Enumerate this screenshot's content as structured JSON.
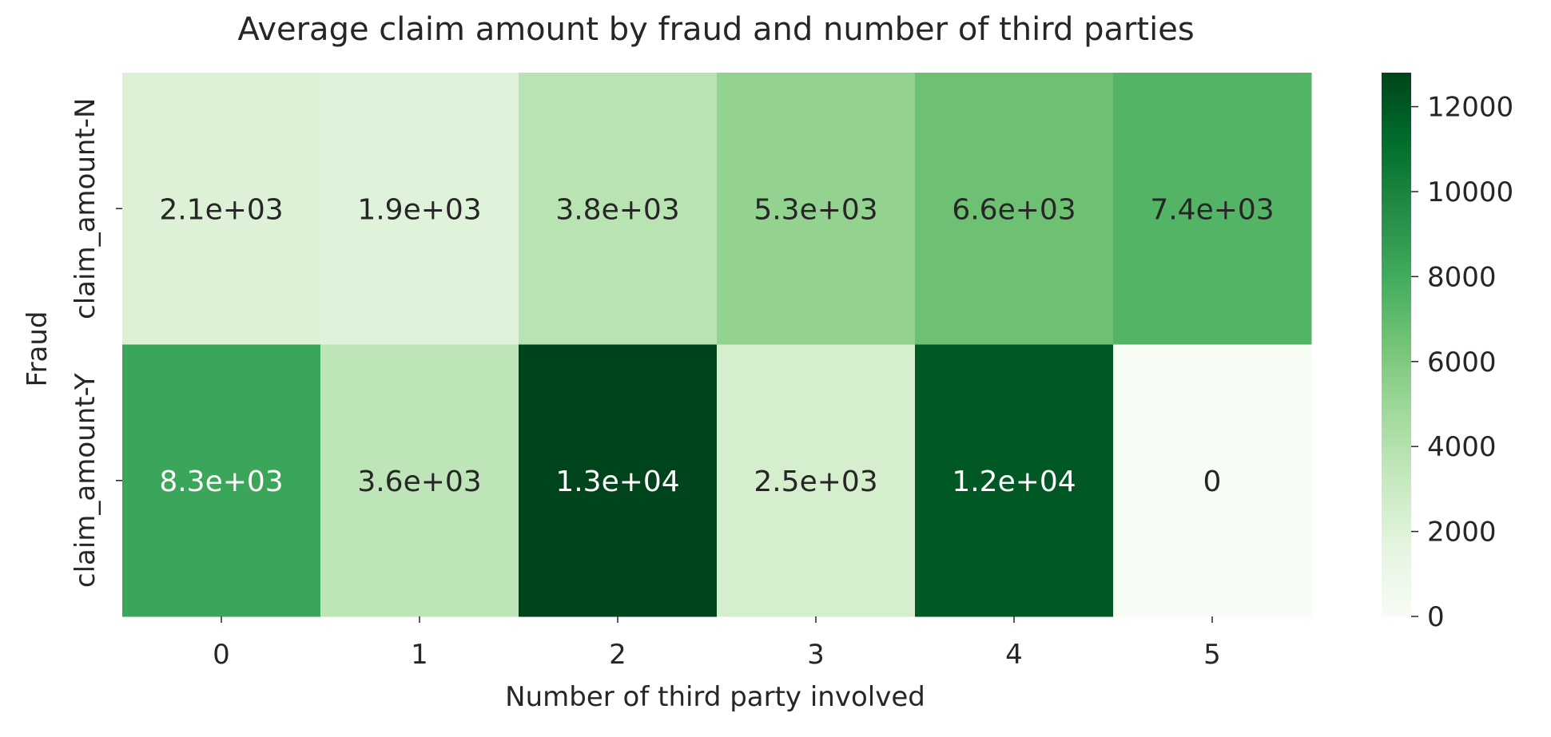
{
  "chart_data": {
    "type": "heatmap",
    "title": "Average claim amount by fraud and number of third parties",
    "xlabel": "Number of third party involved",
    "ylabel": "Fraud",
    "x_categories": [
      "0",
      "1",
      "2",
      "3",
      "4",
      "5"
    ],
    "y_categories": [
      "claim_amount-N",
      "claim_amount-Y"
    ],
    "values": [
      [
        2100,
        1900,
        3800,
        5300,
        6600,
        7400
      ],
      [
        8300,
        3600,
        13000,
        2500,
        12000,
        0
      ]
    ],
    "cell_labels": [
      [
        "2.1e+03",
        "1.9e+03",
        "3.8e+03",
        "5.3e+03",
        "6.6e+03",
        "7.4e+03"
      ],
      [
        "8.3e+03",
        "3.6e+03",
        "1.3e+04",
        "2.5e+03",
        "1.2e+04",
        "0"
      ]
    ],
    "colormap": "Greens",
    "color_range": [
      0,
      12800
    ],
    "colorbar": {
      "ticks": [
        0,
        2000,
        4000,
        6000,
        8000,
        10000,
        12000
      ],
      "tick_labels": [
        "0",
        "2000",
        "4000",
        "6000",
        "8000",
        "10000",
        "12000"
      ]
    },
    "text_colors": {
      "dark": "#262626",
      "light": "#ffffff"
    }
  }
}
